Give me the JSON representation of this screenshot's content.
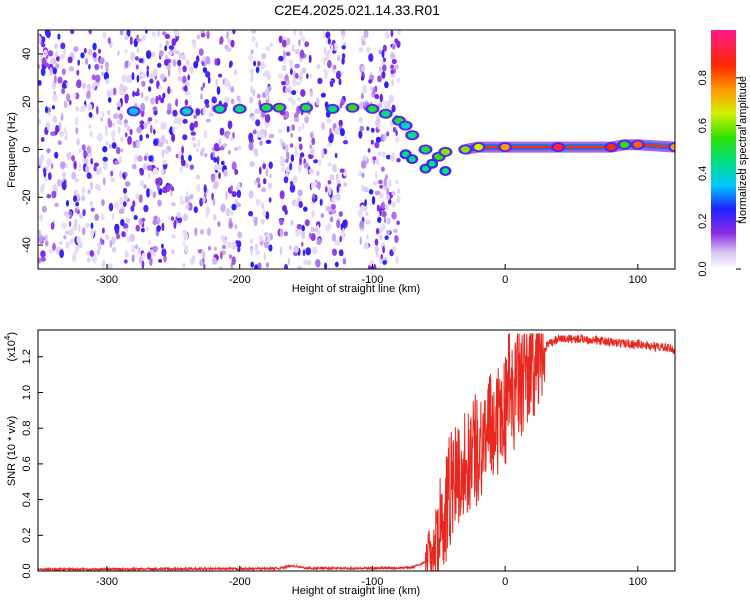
{
  "title": "C2E4.2025.021.14.33.R01",
  "chart_data": [
    {
      "type": "heatmap",
      "xlabel": "Height of straight line (km)",
      "ylabel": "Frequency (Hz)",
      "xlim": [
        -352,
        128
      ],
      "ylim": [
        -50,
        50
      ],
      "x_ticks": [
        -300,
        -200,
        -100,
        0,
        100
      ],
      "y_ticks": [
        -40,
        -20,
        0,
        20,
        40
      ],
      "colorbar": {
        "label": "Normalized spectral amplitude",
        "range": [
          0,
          1
        ],
        "ticks": [
          0.0,
          0.2,
          0.4,
          0.6,
          0.8
        ],
        "tick_labels": [
          "0.0",
          "0.2",
          "0.4",
          "0.6",
          "0.8"
        ]
      },
      "noise_region_x": [
        -352,
        -80
      ],
      "blank_columns_x": [
        [
          -200,
          -192
        ],
        [
          -176,
          -170
        ],
        [
          -120,
          -110
        ]
      ],
      "ridge": {
        "x": [
          -280,
          -240,
          -215,
          -200,
          -180,
          -170,
          -150,
          -130,
          -115,
          -100,
          -90,
          -80,
          -75,
          -70,
          -60,
          -50,
          -45,
          -30,
          -20,
          0,
          40,
          80,
          90,
          100,
          128
        ],
        "y": [
          16,
          16,
          17,
          17,
          17.5,
          17.5,
          17.5,
          17,
          17.5,
          17,
          15,
          12,
          10,
          6,
          0,
          -3,
          -1,
          0,
          1,
          1,
          1,
          1,
          2,
          2,
          1
        ],
        "value": [
          0.35,
          0.4,
          0.45,
          0.45,
          0.5,
          0.55,
          0.5,
          0.45,
          0.55,
          0.5,
          0.45,
          0.5,
          0.4,
          0.45,
          0.5,
          0.55,
          0.6,
          0.6,
          0.65,
          0.75,
          0.9,
          0.85,
          0.55,
          0.8,
          0.75
        ]
      },
      "secondary_branch": {
        "x": [
          -75,
          -70,
          -60,
          -55,
          -45
        ],
        "y": [
          -2,
          -4,
          -8,
          -6,
          -9
        ]
      }
    },
    {
      "type": "line",
      "xlabel": "Height of straight line (km)",
      "ylabel": "SNR (10 * v/v)",
      "y_multiplier": "(x10",
      "y_multiplier_exp": "4",
      "xlim": [
        -352,
        128
      ],
      "ylim": [
        0,
        1.35
      ],
      "x_ticks": [
        -300,
        -200,
        -100,
        0,
        100
      ],
      "y_ticks": [
        0.0,
        0.2,
        0.4,
        0.6,
        0.8,
        1.0,
        1.2
      ],
      "y_tick_labels": [
        "0.0",
        "0.2",
        "0.4",
        "0.6",
        "0.8",
        "1.0",
        "1.2"
      ],
      "color": "#e8271f",
      "series": [
        {
          "x": [
            -352,
            -300,
            -250,
            -200,
            -170,
            -160,
            -150,
            -100,
            -70,
            -60,
            -55,
            -50,
            -45,
            -40,
            -35,
            -30,
            -25,
            -20,
            -15,
            -10,
            -5,
            0,
            5,
            10,
            15,
            20,
            25,
            30,
            35,
            40,
            60,
            80,
            100,
            110,
            120,
            128
          ],
          "values": [
            0.01,
            0.01,
            0.012,
            0.012,
            0.015,
            0.03,
            0.015,
            0.015,
            0.02,
            0.05,
            0.1,
            0.2,
            0.35,
            0.5,
            0.55,
            0.6,
            0.65,
            0.7,
            0.75,
            0.8,
            0.85,
            0.9,
            0.95,
            1.05,
            1.1,
            1.15,
            1.2,
            1.25,
            1.28,
            1.3,
            1.3,
            1.28,
            1.27,
            1.26,
            1.25,
            1.24
          ]
        }
      ]
    }
  ]
}
